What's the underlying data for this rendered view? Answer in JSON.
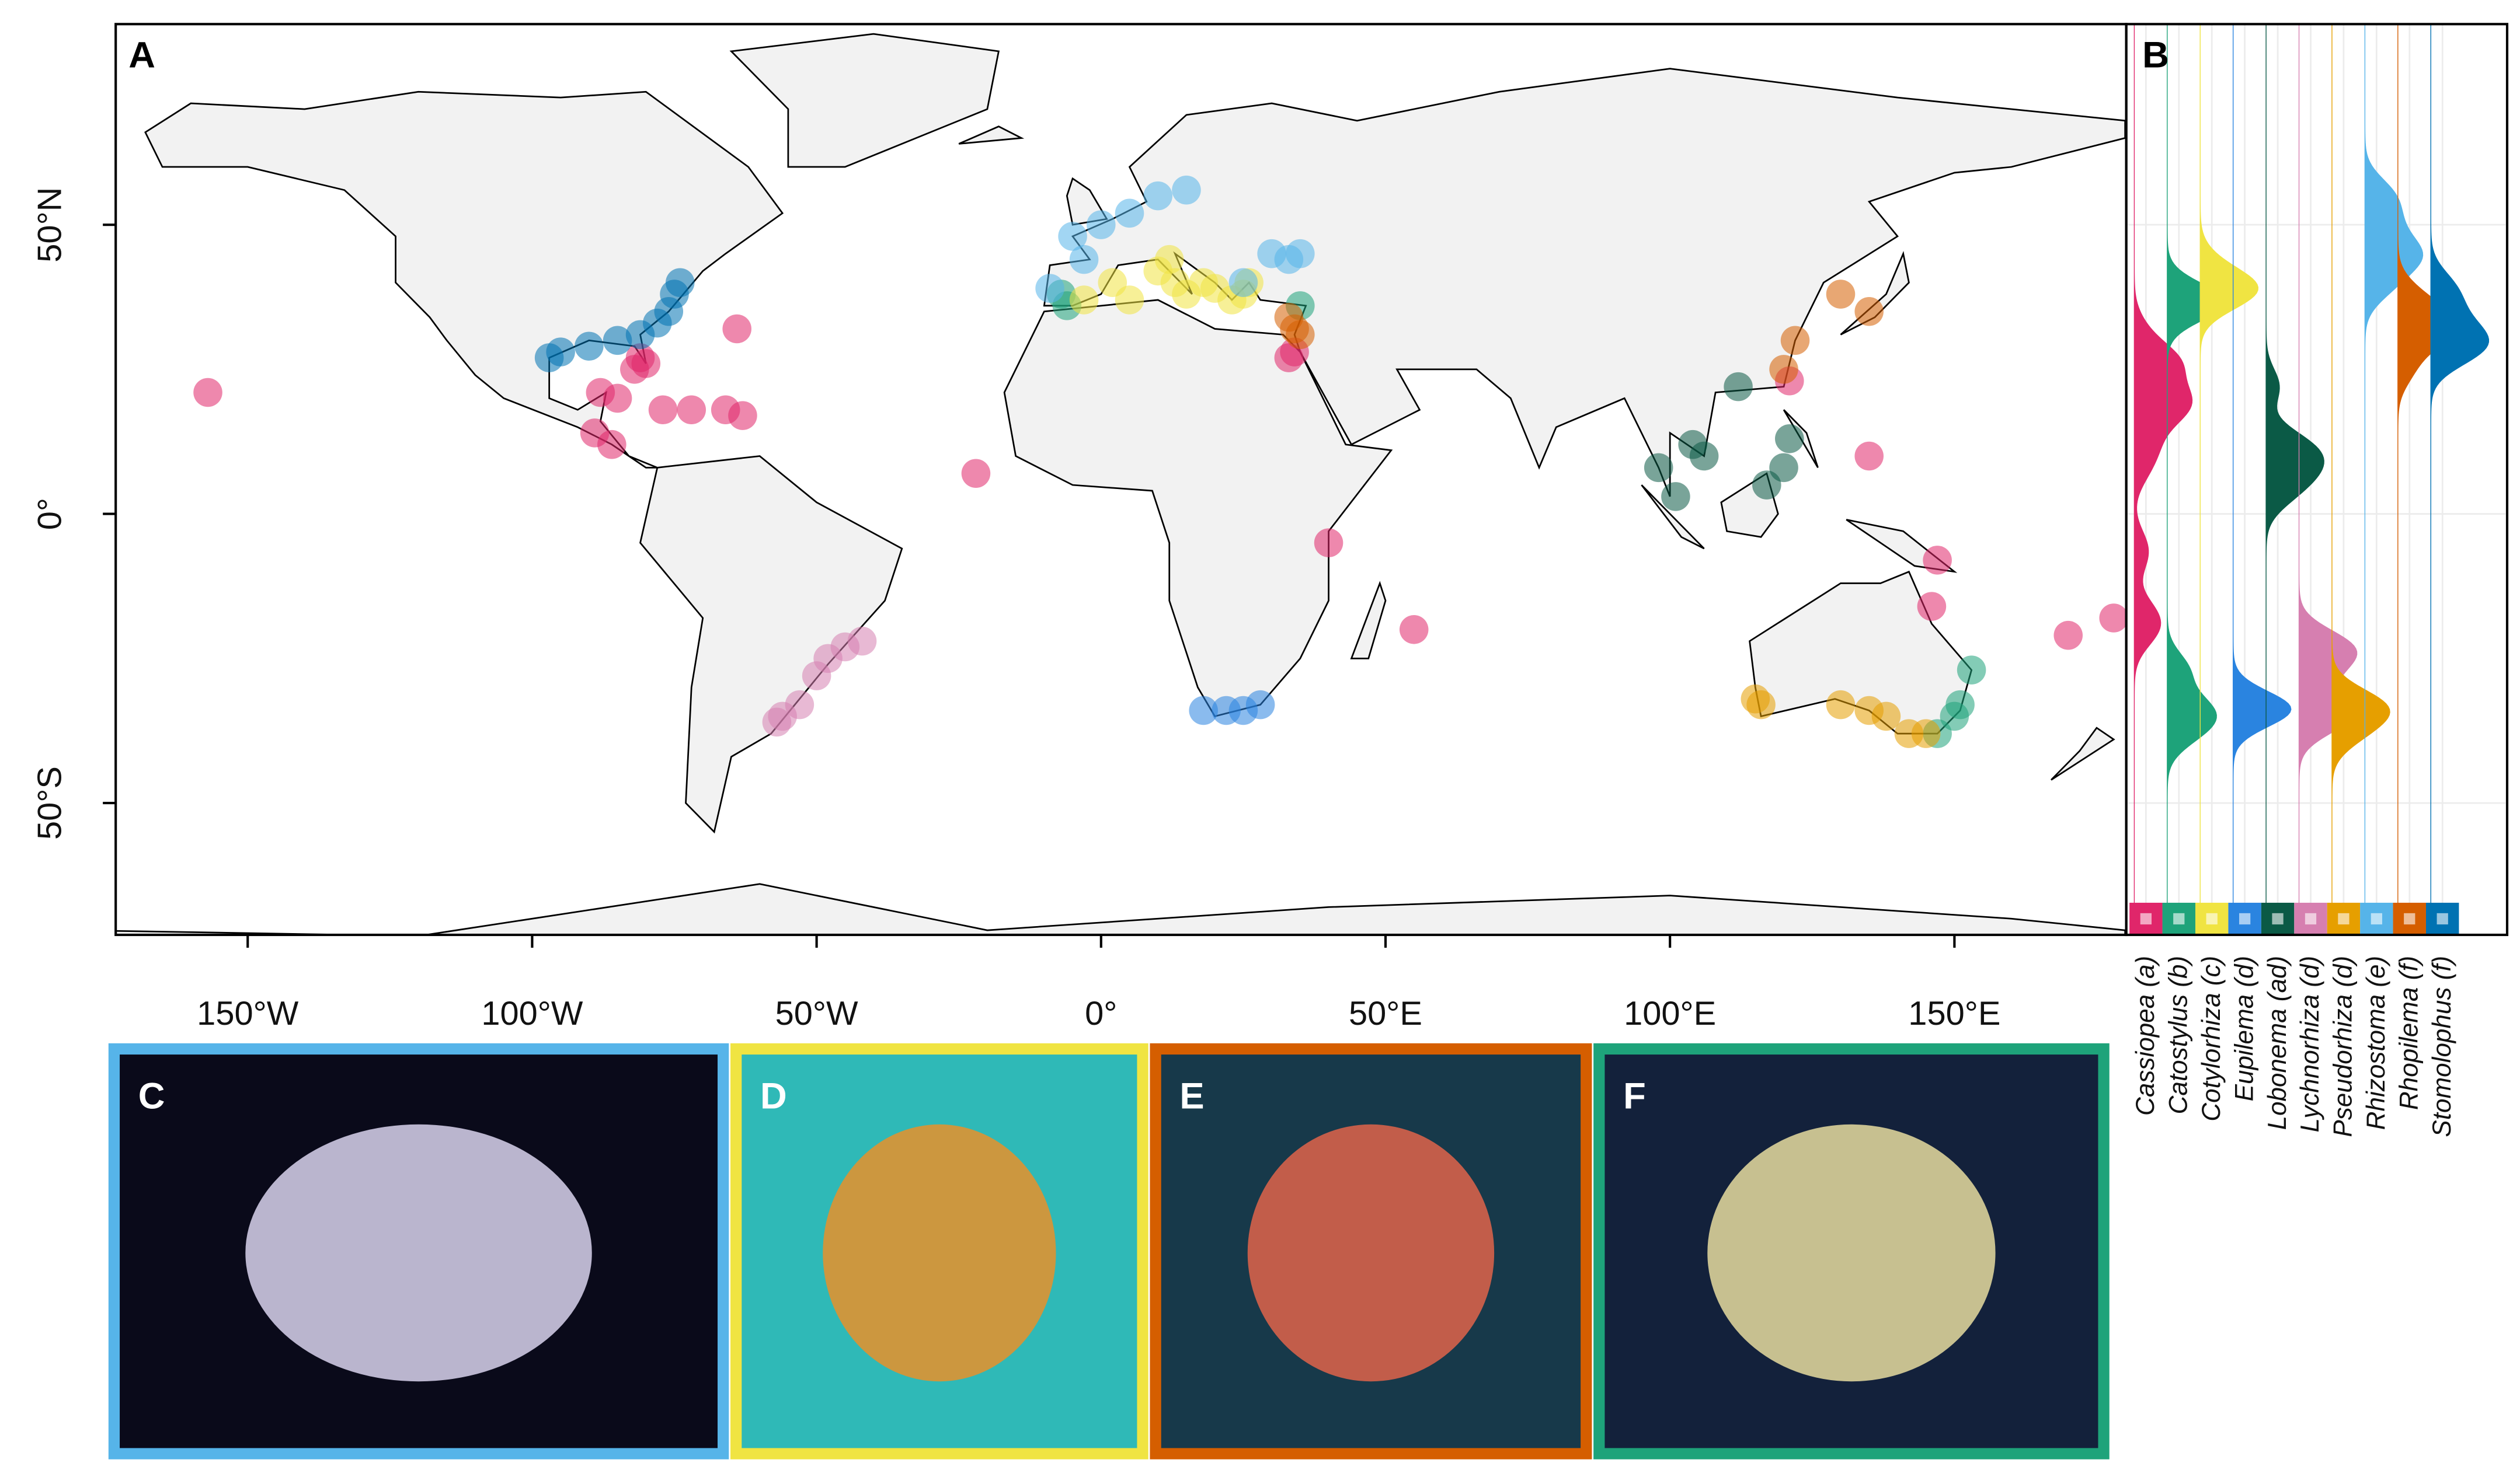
{
  "chart_data": {
    "type": "map",
    "panel_label": "A",
    "density_panel_label": "B",
    "xlim": [
      -173.2,
      180.2
    ],
    "ylim": [
      -72.8,
      84.7
    ],
    "xticks": [
      {
        "value": -150,
        "label": "150°W"
      },
      {
        "value": -100,
        "label": "100°W"
      },
      {
        "value": -50,
        "label": "50°W"
      },
      {
        "value": 0,
        "label": "0°"
      },
      {
        "value": 50,
        "label": "50°E"
      },
      {
        "value": 100,
        "label": "100°E"
      },
      {
        "value": 150,
        "label": "150°E"
      }
    ],
    "yticks": [
      {
        "value": 50,
        "label": "50°N"
      },
      {
        "value": 0,
        "label": "0°"
      },
      {
        "value": -50,
        "label": "50°S"
      }
    ],
    "series": [
      {
        "name": "Cassiopea (a)",
        "color": "#e0266a",
        "x": [
          -81,
          -82,
          -80,
          -88,
          -85,
          -77,
          -72,
          -66,
          -63,
          -157,
          -64,
          -89,
          -86,
          33,
          34,
          121,
          135,
          -22,
          170,
          178,
          146,
          40,
          55,
          147
        ],
        "y": [
          27,
          25,
          26,
          21,
          20,
          18,
          18,
          18,
          17,
          21,
          32,
          14,
          12,
          27,
          28,
          23,
          10,
          7,
          -21,
          -18,
          -16,
          -5,
          -20,
          -8
        ]
      },
      {
        "name": "Catostylus (b)",
        "color": "#1ea37a",
        "x": [
          153,
          151,
          150,
          147,
          -7,
          -6,
          35
        ],
        "y": [
          -27,
          -33,
          -35,
          -38,
          38,
          36,
          36
        ]
      },
      {
        "name": "Cotylorhiza (c)",
        "color": "#f0e442",
        "x": [
          2,
          10,
          13,
          15,
          20,
          25,
          5,
          -3,
          12,
          18,
          23,
          26
        ],
        "y": [
          40,
          42,
          40,
          38,
          39,
          38,
          37,
          37,
          44,
          40,
          37,
          40
        ]
      },
      {
        "name": "Eupilema (d)",
        "color": "#2a84e0",
        "x": [
          18,
          22,
          25,
          28
        ],
        "y": [
          -34,
          -34,
          -34,
          -33
        ]
      },
      {
        "name": "Lobonema (ad)",
        "color": "#0b5a46",
        "x": [
          112,
          121,
          120,
          106,
          98,
          101,
          117,
          104
        ],
        "y": [
          22,
          13,
          8,
          10,
          8,
          3,
          5,
          12
        ]
      },
      {
        "name": "Lychnorhiza (d)",
        "color": "#d67fb0",
        "x": [
          -48,
          -50,
          -53,
          -57,
          -45,
          -42,
          -56
        ],
        "y": [
          -25,
          -28,
          -33,
          -36,
          -23,
          -22,
          -35
        ]
      },
      {
        "name": "Pseudorhiza (d)",
        "color": "#e69f00",
        "x": [
          115,
          130,
          138,
          145,
          142,
          116,
          135
        ],
        "y": [
          -32,
          -33,
          -35,
          -38,
          -38,
          -33,
          -34
        ]
      },
      {
        "name": "Rhizostoma (e)",
        "color": "#56b4e9",
        "x": [
          -5,
          0,
          5,
          10,
          15,
          -3,
          30,
          35,
          33,
          -9,
          25
        ],
        "y": [
          48,
          50,
          52,
          55,
          56,
          44,
          45,
          45,
          44,
          39,
          40
        ]
      },
      {
        "name": "Rhopilema (f)",
        "color": "#d55e00",
        "x": [
          34,
          35,
          33,
          130,
          135,
          122,
          120
        ],
        "y": [
          32,
          31,
          34,
          38,
          35,
          30,
          25
        ]
      },
      {
        "name": "Stomolophus (f)",
        "color": "#0072b2",
        "x": [
          -81,
          -78,
          -76,
          -75,
          -95,
          -97,
          -90,
          -85,
          -74
        ],
        "y": [
          31,
          33,
          35,
          38,
          28,
          27,
          29,
          30,
          40
        ]
      }
    ]
  },
  "photo_panels": [
    {
      "label": "C",
      "color": "#56b4e9"
    },
    {
      "label": "D",
      "color": "#f0e442"
    },
    {
      "label": "E",
      "color": "#d55e00"
    },
    {
      "label": "F",
      "color": "#1ea37a"
    }
  ]
}
